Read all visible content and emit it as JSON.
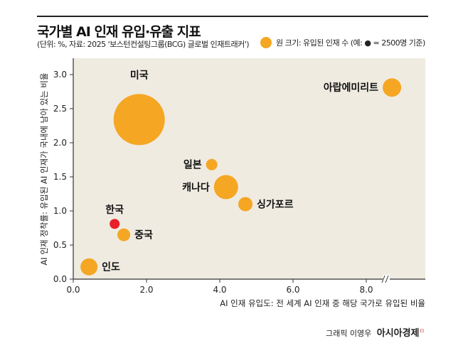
{
  "header": {
    "title": "국가별 AI 인재 유입·유출 지표",
    "subtitle": "(단위: %, 자료: 2025 '보스턴컨설팅그룹(BCG) 글로벌 인재트래커')",
    "legend": "원 크기: 유입된 인재 수 (예: ● = 2500명 기준)"
  },
  "credit": {
    "author": "그래픽 이영우",
    "outlet": "아시아경제"
  },
  "colors": {
    "bubble": "#f5a623",
    "highlight": "#e8202a",
    "background": "#efebe1"
  },
  "chart_data": {
    "type": "scatter",
    "title": "국가별 AI 인재 유입·유출 지표",
    "xlabel": "AI 인재 유입도: 전 세계 AI 인재 중 해당 국가로 유입된 비율",
    "ylabel": "AI 인재 정착률: 유입된 AI 인재가 국내에 남아 있는 비율",
    "xlim": [
      0,
      9.4
    ],
    "ylim": [
      0,
      3.4
    ],
    "xticks": [
      "0.0",
      "2.0",
      "4.0",
      "6.0",
      "8.0"
    ],
    "yticks": [
      "0.0",
      "0.5",
      "1.0",
      "1.5",
      "2.0",
      "2.5",
      "3.0"
    ],
    "x_axis_break": true,
    "points": [
      {
        "name": "미국",
        "x": 1.8,
        "y": 2.34,
        "size": 36,
        "highlight": false,
        "label_pos": "top"
      },
      {
        "name": "아랍에미리트",
        "x": 8.7,
        "y": 2.81,
        "size": 13,
        "highlight": false,
        "label_pos": "left"
      },
      {
        "name": "일본",
        "x": 3.78,
        "y": 1.68,
        "size": 8,
        "highlight": false,
        "label_pos": "left"
      },
      {
        "name": "캐나다",
        "x": 4.17,
        "y": 1.35,
        "size": 17,
        "highlight": false,
        "label_pos": "left"
      },
      {
        "name": "싱가포르",
        "x": 4.7,
        "y": 1.1,
        "size": 10,
        "highlight": false,
        "label_pos": "right"
      },
      {
        "name": "한국",
        "x": 1.13,
        "y": 0.81,
        "size": 7,
        "highlight": true,
        "label_pos": "top"
      },
      {
        "name": "중국",
        "x": 1.38,
        "y": 0.65,
        "size": 9,
        "highlight": false,
        "label_pos": "right"
      },
      {
        "name": "인도",
        "x": 0.43,
        "y": 0.18,
        "size": 12,
        "highlight": false,
        "label_pos": "right"
      }
    ]
  }
}
